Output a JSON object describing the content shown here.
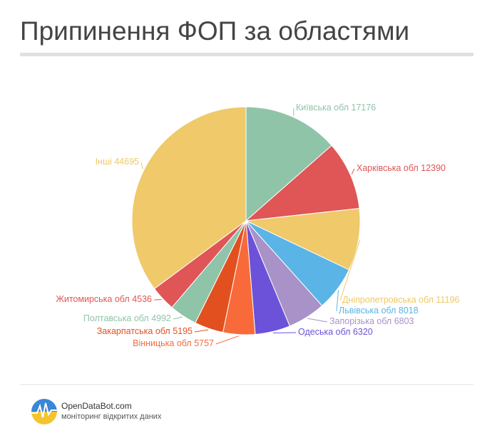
{
  "chart_data": {
    "type": "pie",
    "title": "Припинення ФОП за областями",
    "categories": [
      "Київська обл",
      "Харківська обл",
      "Дніпропетровська обл",
      "Львівська обл",
      "Запорізька обл",
      "Одеська обл",
      "Вінницька обл",
      "Закарпатська обл",
      "Полтавська обл",
      "Житомирська обл",
      "Інші"
    ],
    "values": [
      17176,
      12390,
      11196,
      8018,
      6803,
      6320,
      5757,
      5195,
      4992,
      4536,
      44695
    ],
    "colors": [
      "#8fc4a8",
      "#e05556",
      "#efc96a",
      "#5ab4e5",
      "#a892c8",
      "#6b52d9",
      "#f86a3a",
      "#e35020",
      "#8fc4a8",
      "#e05556",
      "#efc96a"
    ]
  },
  "footer": {
    "brand": "OpenDataBot.com",
    "tagline": "моніторинг відкритих даних"
  }
}
